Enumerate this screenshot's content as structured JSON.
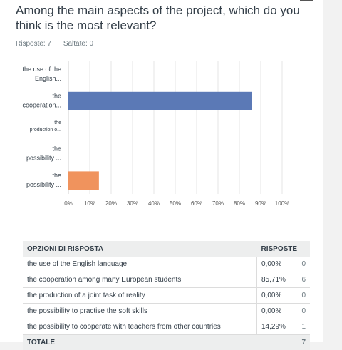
{
  "question": "Among the main aspects of the project, which do you think is the most relevant?",
  "stats": {
    "answered": "Risposte: 7",
    "skipped": "Saltate: 0"
  },
  "colors": {
    "primary_bar": "#5b79b6",
    "secondary_bar": "#f0935d",
    "grid": "#e6e6e6"
  },
  "chart_data": {
    "type": "bar",
    "orientation": "horizontal",
    "categories": [
      [
        "the use of the",
        "English..."
      ],
      [
        "the",
        "cooperation..."
      ],
      [
        "the",
        "production o..."
      ],
      [
        "the",
        "possibility ..."
      ],
      [
        "the",
        "possibility ..."
      ]
    ],
    "values": [
      0,
      85.71,
      0,
      0,
      14.29
    ],
    "bar_colors": [
      "#5b79b6",
      "#5b79b6",
      "#5b79b6",
      "#5b79b6",
      "#f0935d"
    ],
    "xlim": [
      0,
      100
    ],
    "xticks": [
      "0%",
      "10%",
      "20%",
      "30%",
      "40%",
      "50%",
      "60%",
      "70%",
      "80%",
      "90%",
      "100%"
    ],
    "grid": true
  },
  "table": {
    "headers": [
      "OPZIONI DI RISPOSTA",
      "RISPOSTE"
    ],
    "rows": [
      {
        "option": "the use of the English language",
        "percent": "0,00%",
        "count": "0"
      },
      {
        "option": "the cooperation among  many European students",
        "percent": "85,71%",
        "count": "6"
      },
      {
        "option": "the  production of a joint task of reality",
        "percent": "0,00%",
        "count": "0"
      },
      {
        "option": "the possibility to practise the soft skills",
        "percent": "0,00%",
        "count": "0"
      },
      {
        "option": "the possibility to cooperate with teachers from other countries",
        "percent": "14,29%",
        "count": "1"
      }
    ],
    "total_label": "TOTALE",
    "total_count": "7"
  }
}
